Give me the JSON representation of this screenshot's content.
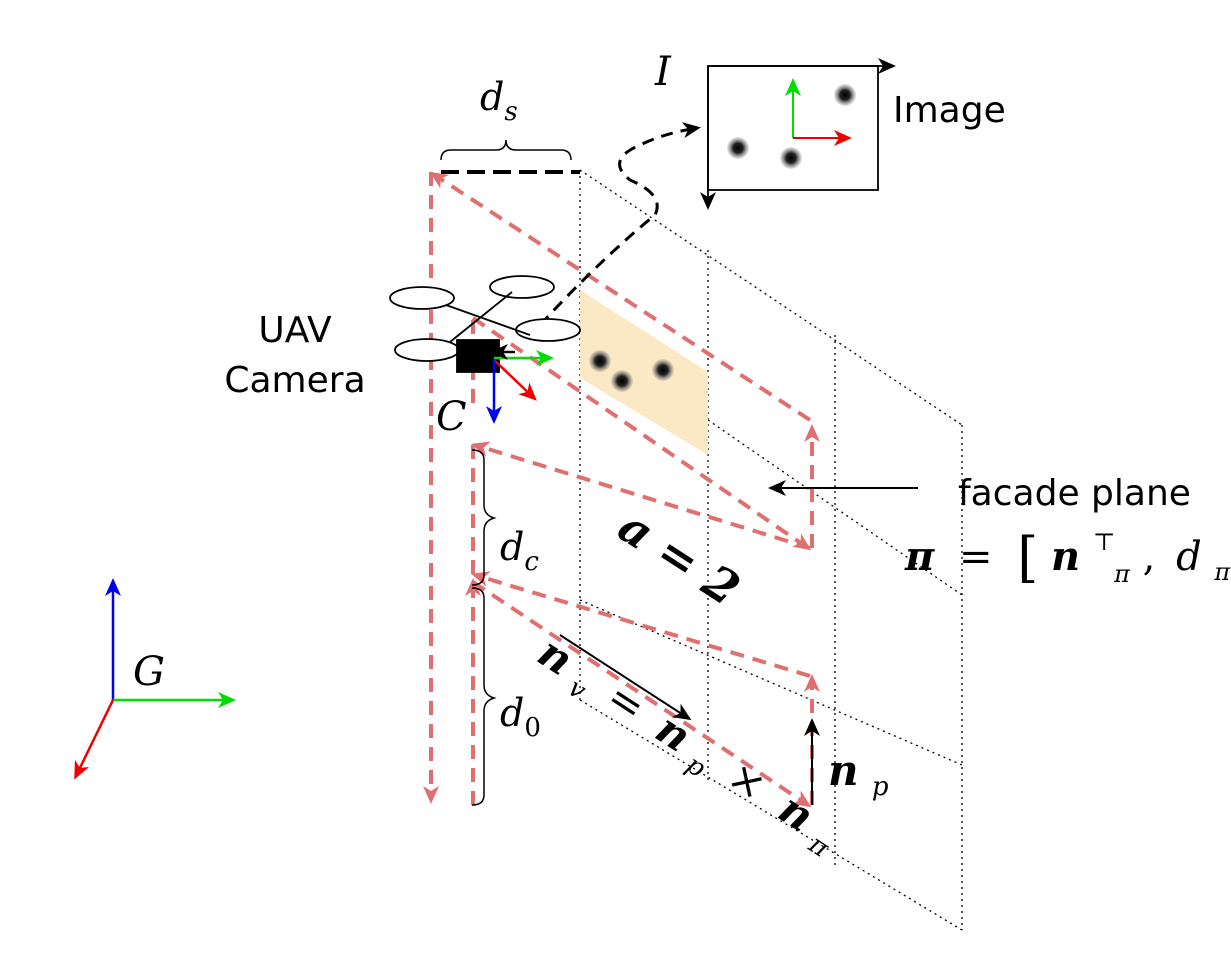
{
  "labels": {
    "uav_line1": "UAV",
    "uav_line2": "Camera",
    "image": "Image",
    "facade_plane": "facade plane",
    "d_s_base": "d",
    "d_s_sub": "s",
    "d_c_base": "d",
    "d_c_sub": "c",
    "d_0_base": "d",
    "d_0_sub": "0",
    "a_eq": "a = 2",
    "frame_C": "C",
    "frame_I": "I",
    "frame_G": "G",
    "pi_symbol": "π",
    "eq_sign": "=",
    "bracket_open": "[",
    "bracket_close": "]",
    "n_base": "n",
    "pi_sub": "π",
    "transpose": "⊤",
    "comma": ",",
    "d_base": "d",
    "nv_base": "n",
    "nv_sub": "v",
    "np_base": "n",
    "np_sub": "p",
    "times": "×",
    "npi_base": "n",
    "npi_sub": "π",
    "np_right_base": "n",
    "np_right_sub": "p"
  },
  "colors": {
    "dashed_red": "#e07070",
    "region_fill": "#fbe8c4",
    "axis_red": "#ee0000",
    "axis_green": "#00dd00",
    "axis_blue": "#0000ee",
    "ink": "#000000"
  }
}
